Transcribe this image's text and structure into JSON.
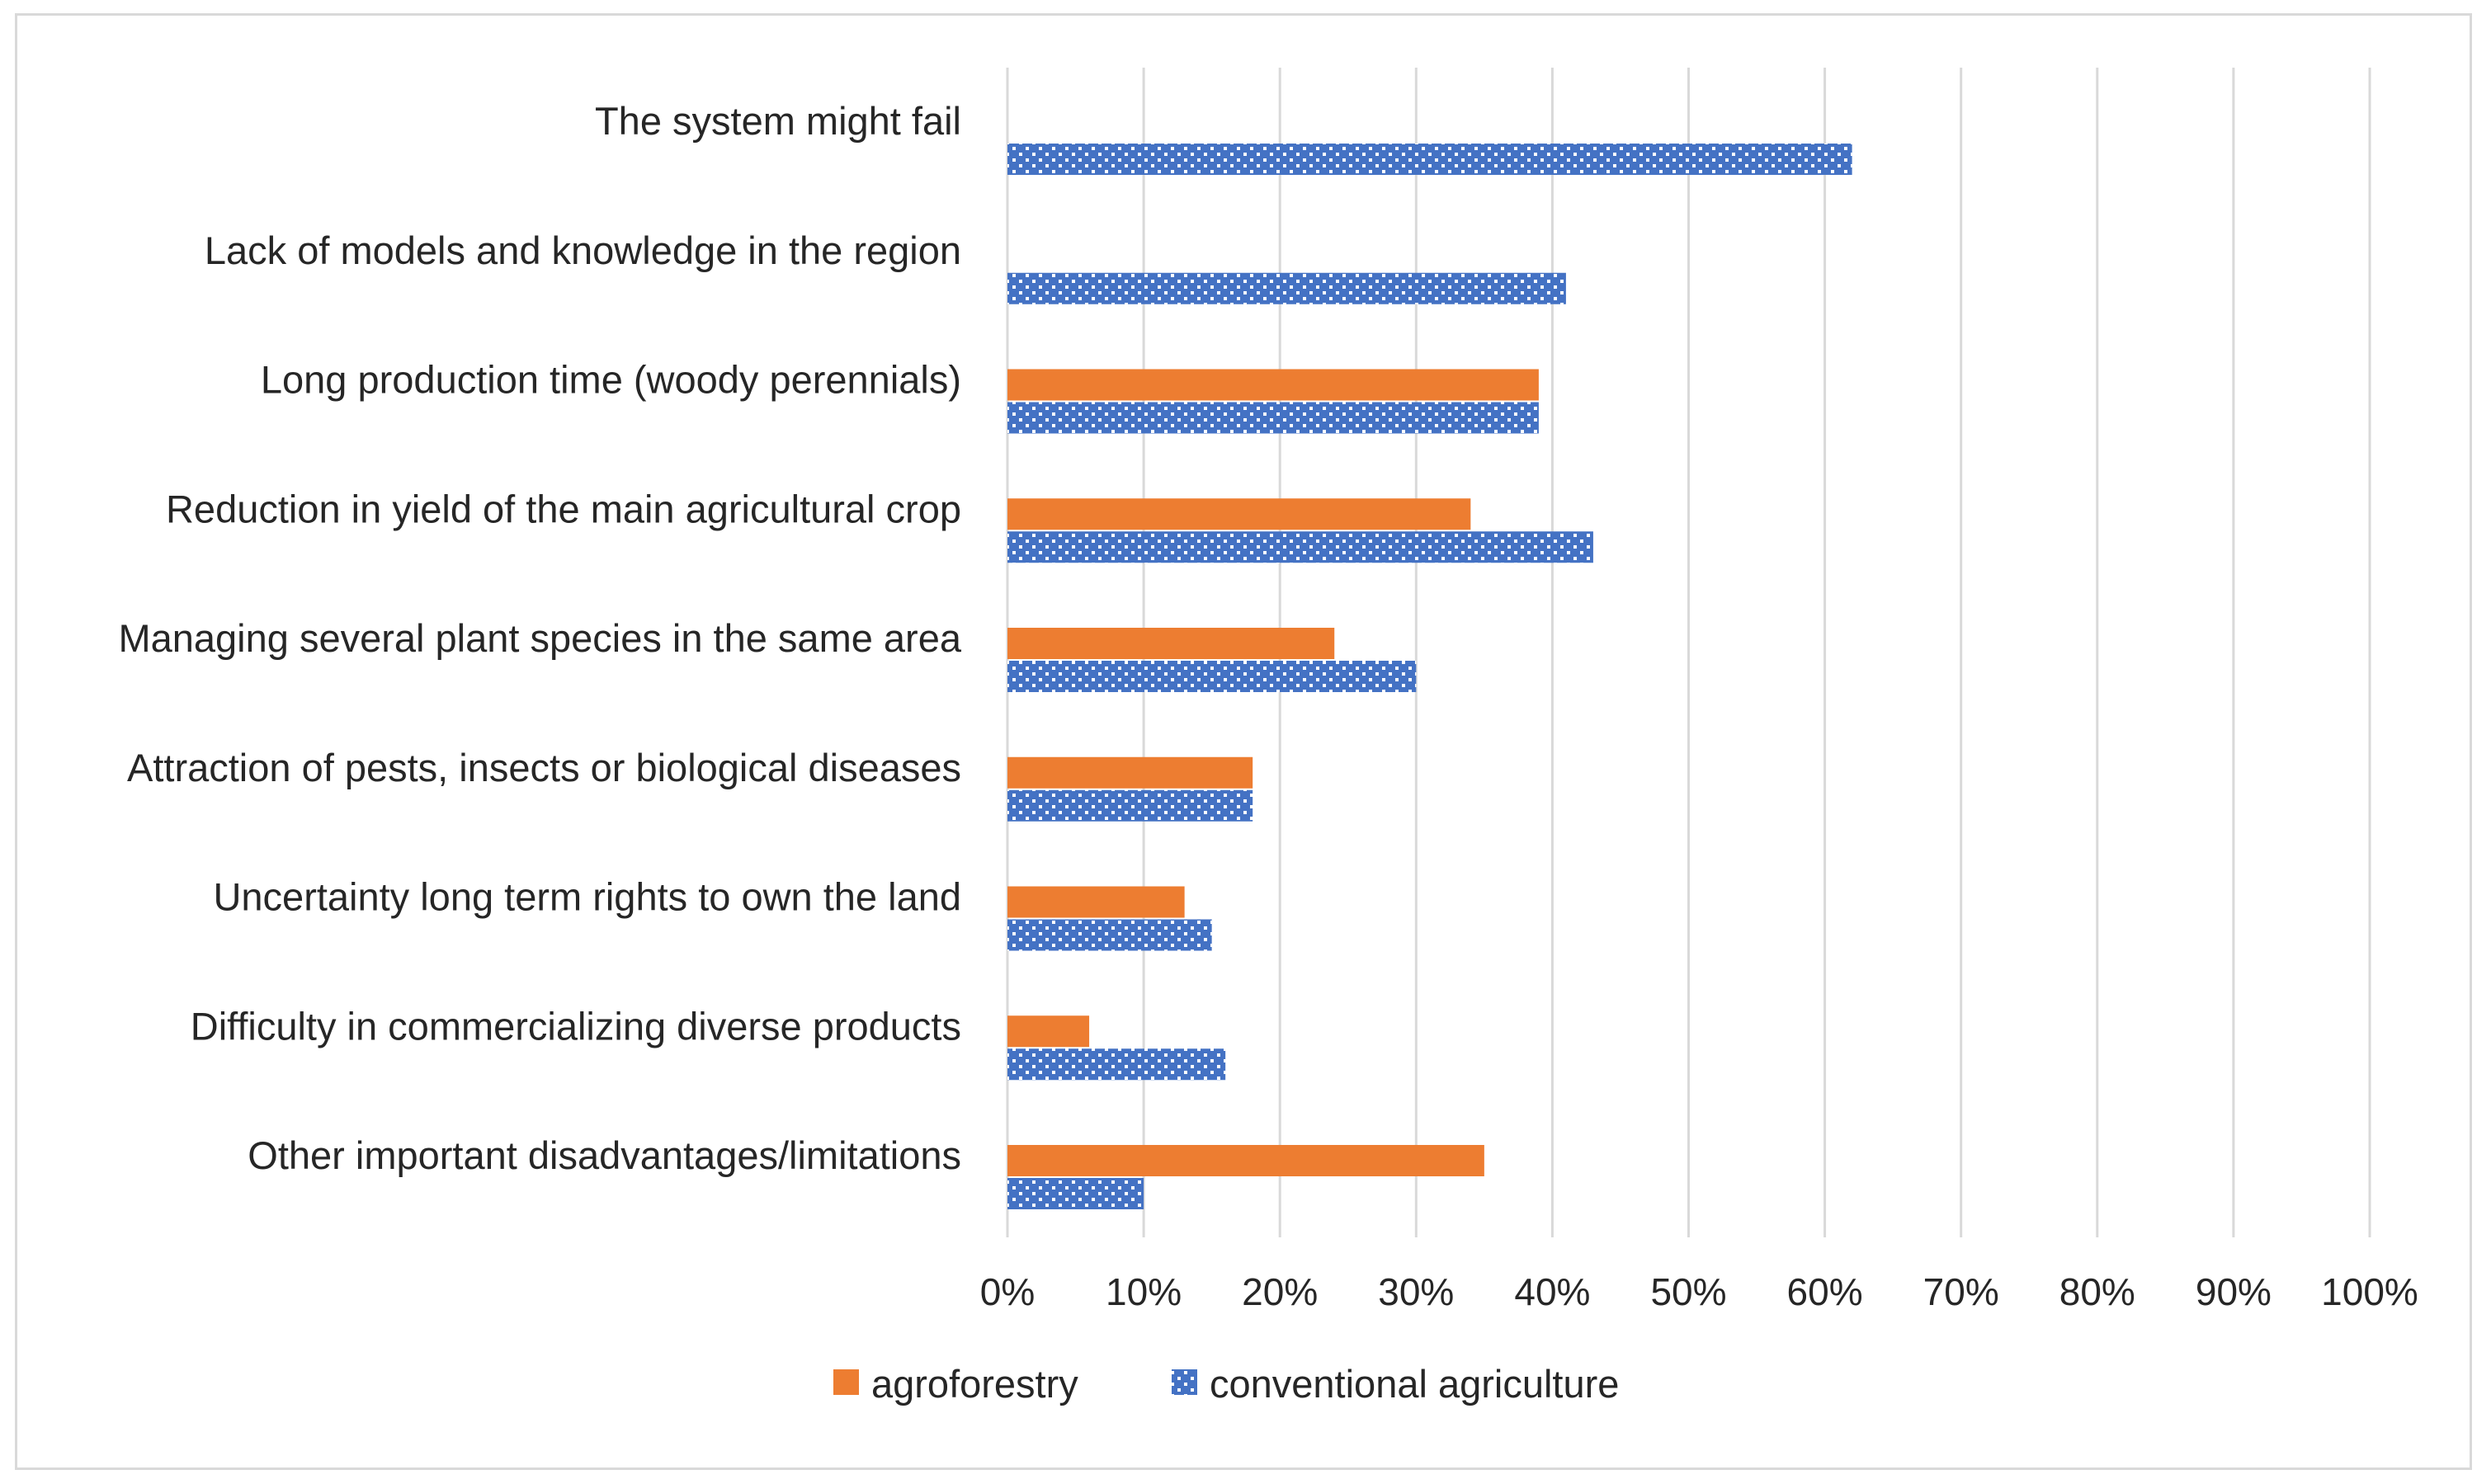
{
  "chart_data": {
    "type": "bar",
    "orientation": "horizontal",
    "title": "",
    "xlabel": "",
    "ylabel": "",
    "xlim": [
      0,
      100
    ],
    "tick_step": 10,
    "tick_suffix": "%",
    "grid": true,
    "legend_position": "bottom",
    "categories": [
      "The system might fail",
      "Lack of models and knowledge in the region",
      "Long production time (woody perennials)",
      "Reduction in yield of the main agricultural crop",
      "Managing several plant species in the same area",
      "Attraction of pests, insects or biological diseases",
      "Uncertainty long term rights to own the land",
      "Difficulty in commercializing diverse products",
      "Other important disadvantages/limitations"
    ],
    "series": [
      {
        "name": "agroforestry",
        "color": "#ED7D31",
        "pattern": "solid",
        "values": [
          0,
          0,
          39,
          34,
          24,
          18,
          13,
          6,
          35
        ]
      },
      {
        "name": "conventional agriculture",
        "color": "#4472C4",
        "pattern": "dotted",
        "values": [
          62,
          41,
          39,
          43,
          30,
          18,
          15,
          16,
          10
        ]
      }
    ]
  }
}
